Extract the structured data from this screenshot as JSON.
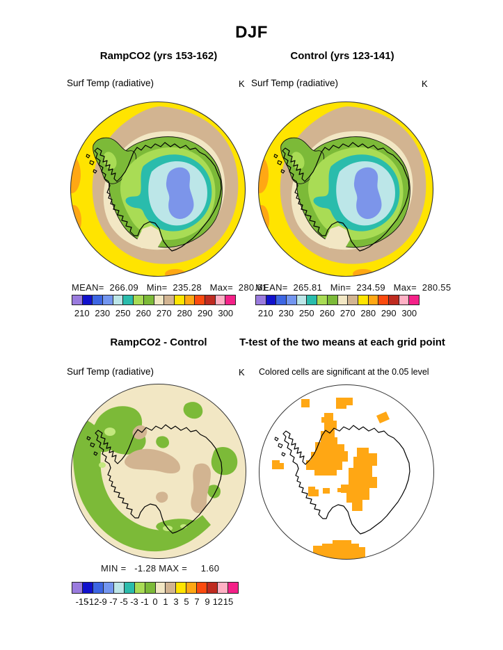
{
  "title": "DJF",
  "panels": {
    "ramp": {
      "title": "RampCO2 (yrs 153-162)",
      "field_label": "Surf Temp (radiative)",
      "units": "K",
      "stats_text": "MEAN=  266.09   Min=  235.28   Max=  280.61"
    },
    "control": {
      "title": "Control (yrs 123-141)",
      "field_label": "Surf Temp (radiative)",
      "units": "K",
      "stats_text": "MEAN=  265.81   Min=  234.59   Max=  280.55"
    },
    "diff": {
      "title": "RampCO2 - Control",
      "field_label": "Surf Temp (radiative)",
      "units": "K",
      "stats_text": "MIN =   -1.28 MAX =     1.60"
    },
    "ttest": {
      "title": "T-test of the two means at each grid point",
      "note": "Colored cells are significant at the 0.05 level"
    }
  },
  "colorbars": {
    "palette16": [
      "#9A7BDE",
      "#1111CC",
      "#3D66E3",
      "#7396F0",
      "#BCE6E8",
      "#2ABCAC",
      "#A9DC55",
      "#7CBA38",
      "#F2E7C4",
      "#D2B491",
      "#FFE400",
      "#FFA714",
      "#FB4B0F",
      "#BF2B20",
      "#FFB0C4",
      "#F42188"
    ],
    "temp": {
      "labels": [
        "210",
        "230",
        "250",
        "260",
        "270",
        "280",
        "290",
        "300"
      ],
      "positions": [
        1,
        3,
        5,
        7,
        9,
        11,
        13,
        15
      ],
      "divisions": 16
    },
    "diff": {
      "labels": [
        "-15",
        "-12",
        "-9",
        "-7",
        "-5",
        "-3",
        "-1",
        "0",
        "1",
        "3",
        "5",
        "7",
        "9",
        "12",
        "15"
      ],
      "positions": [
        1,
        2,
        3,
        4,
        5,
        6,
        7,
        8,
        9,
        10,
        11,
        12,
        13,
        14,
        15
      ],
      "divisions": 16
    }
  },
  "colors": {
    "yellow": "#FFE400",
    "orange": "#FFA714",
    "tan": "#D2B491",
    "cream": "#F2E7C4",
    "green": "#7CBA38",
    "lightgreen": "#A9DC55",
    "teal": "#2ABCAC",
    "cyan": "#BCE6E8",
    "blue": "#7C95EA",
    "diffspot": "#C3E87E",
    "sigorange": "#FFA714",
    "white": "#FFFFFF",
    "coast": "#000000",
    "outline": "#333333"
  },
  "chart_data": [
    {
      "type": "heatmap",
      "title": "RampCO2 (yrs 153-162)",
      "variable": "Surf Temp (radiative)",
      "units": "K",
      "region": "Antarctica, south polar projection",
      "stats": {
        "mean": 266.09,
        "min": 235.28,
        "max": 280.61
      },
      "colorbar_tick_values": [
        210,
        230,
        250,
        260,
        270,
        280,
        290,
        300
      ],
      "legend_position": "below"
    },
    {
      "type": "heatmap",
      "title": "Control (yrs 123-141)",
      "variable": "Surf Temp (radiative)",
      "units": "K",
      "region": "Antarctica, south polar projection",
      "stats": {
        "mean": 265.81,
        "min": 234.59,
        "max": 280.55
      },
      "colorbar_tick_values": [
        210,
        230,
        250,
        260,
        270,
        280,
        290,
        300
      ],
      "legend_position": "below"
    },
    {
      "type": "heatmap",
      "title": "RampCO2 - Control",
      "variable": "Surf Temp (radiative)",
      "units": "K",
      "region": "Antarctica, south polar projection",
      "stats": {
        "min": -1.28,
        "max": 1.6
      },
      "colorbar_tick_values": [
        -15,
        -12,
        -9,
        -7,
        -5,
        -3,
        -1,
        0,
        1,
        3,
        5,
        7,
        9,
        12,
        15
      ],
      "legend_position": "below"
    },
    {
      "type": "heatmap",
      "title": "T-test of the two means at each grid point",
      "note": "Colored cells are significant at the 0.05 level",
      "significance_level": 0.05,
      "significant_cell_color": "#FFA714"
    }
  ]
}
